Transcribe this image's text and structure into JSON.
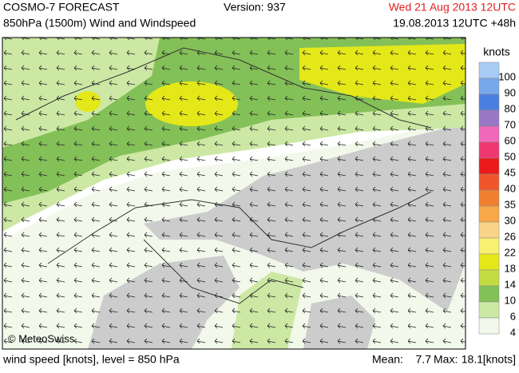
{
  "header": {
    "title": "COSMO-7 FORECAST",
    "subtitle": "850hPa (1500m) Wind and Windspeed",
    "version": "Version: 937",
    "valid_time": "Wed 21 Aug 2013 12UTC",
    "run_time": "19.08.2013 12UTC +48h"
  },
  "map": {
    "credit": "© MeteoSwiss"
  },
  "legend": {
    "title": "knots",
    "levels": [
      {
        "value": 100,
        "color": "#a8ccf4"
      },
      {
        "value": 90,
        "color": "#78a8ec"
      },
      {
        "value": 80,
        "color": "#4a7ee0"
      },
      {
        "value": 70,
        "color": "#9878c4"
      },
      {
        "value": 60,
        "color": "#f068b8"
      },
      {
        "value": 50,
        "color": "#f03870"
      },
      {
        "value": 45,
        "color": "#ec1a1a"
      },
      {
        "value": 40,
        "color": "#f0562a"
      },
      {
        "value": 35,
        "color": "#f08030"
      },
      {
        "value": 30,
        "color": "#f8a848"
      },
      {
        "value": 26,
        "color": "#f8d488"
      },
      {
        "value": 22,
        "color": "#f8f070"
      },
      {
        "value": 18,
        "color": "#e4e818"
      },
      {
        "value": 14,
        "color": "#c4dc44"
      },
      {
        "value": 10,
        "color": "#84c058"
      },
      {
        "value": 6,
        "color": "#cce8a4"
      },
      {
        "value": 4,
        "color": "#f2f8ea"
      }
    ]
  },
  "footer": {
    "description": "wind speed [knots], level = 850 hPa",
    "mean_label": "Mean:",
    "mean": 7.7,
    "max_label": "Max:",
    "max": 18.1,
    "unit": "[knots]"
  }
}
